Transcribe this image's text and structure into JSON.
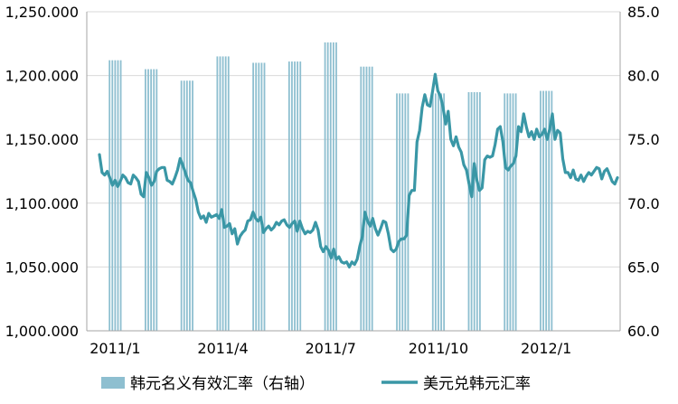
{
  "chart_data": {
    "type": "bar+line",
    "title": "",
    "x_ticks": [
      "2011/1",
      "2011/4",
      "2011/7",
      "2011/10",
      "2012/1"
    ],
    "left_axis": {
      "ylim": [
        1000,
        1250
      ],
      "ticks": [
        "1,000.000",
        "1,050.000",
        "1,100.000",
        "1,150.000",
        "1,200.000",
        "1,250.000"
      ]
    },
    "right_axis": {
      "ylim": [
        60,
        85
      ],
      "ticks": [
        "60.0",
        "65.0",
        "70.0",
        "75.0",
        "80.0",
        "85.0"
      ]
    },
    "grid": "horizontal",
    "legend_position": "bottom",
    "bar_series": {
      "name": "韩元名义有效汇率（右轴）",
      "color": "#8EBFD0",
      "axis": "right",
      "categories": [
        "2011/1",
        "2011/2",
        "2011/3",
        "2011/4",
        "2011/5",
        "2011/6",
        "2011/7",
        "2011/8",
        "2011/9",
        "2011/10",
        "2011/11",
        "2011/12",
        "2012/1",
        "2012/2"
      ],
      "values": [
        81.2,
        80.5,
        79.6,
        81.5,
        81.0,
        81.1,
        82.6,
        80.7,
        78.6,
        78.6,
        78.7,
        78.6,
        78.8,
        null
      ]
    },
    "line_series": {
      "name": "美元兑韩元汇率",
      "color": "#3A97A6",
      "axis": "left",
      "values": [
        1138,
        1124,
        1122,
        1125,
        1120,
        1114,
        1118,
        1113,
        1117,
        1122,
        1120,
        1116,
        1115,
        1122,
        1120,
        1117,
        1107,
        1105,
        1124,
        1120,
        1114,
        1117,
        1125,
        1127,
        1128,
        1128,
        1118,
        1117,
        1115,
        1120,
        1126,
        1135,
        1130,
        1124,
        1118,
        1116,
        1109,
        1103,
        1093,
        1088,
        1090,
        1085,
        1092,
        1089,
        1090,
        1091,
        1088,
        1095,
        1081,
        1082,
        1084,
        1076,
        1080,
        1068,
        1074,
        1077,
        1079,
        1086,
        1087,
        1093,
        1088,
        1086,
        1089,
        1077,
        1080,
        1082,
        1079,
        1081,
        1085,
        1083,
        1086,
        1087,
        1083,
        1081,
        1084,
        1086,
        1078,
        1086,
        1080,
        1076,
        1078,
        1077,
        1079,
        1085,
        1079,
        1066,
        1062,
        1066,
        1063,
        1057,
        1064,
        1056,
        1058,
        1054,
        1053,
        1054,
        1050,
        1054,
        1052,
        1056,
        1066,
        1074,
        1093,
        1086,
        1082,
        1088,
        1080,
        1075,
        1080,
        1086,
        1085,
        1076,
        1064,
        1062,
        1064,
        1070,
        1072,
        1072,
        1075,
        1106,
        1110,
        1110,
        1148,
        1157,
        1175,
        1185,
        1177,
        1176,
        1188,
        1201,
        1188,
        1184,
        1175,
        1162,
        1172,
        1150,
        1145,
        1152,
        1144,
        1140,
        1130,
        1126,
        1115,
        1105,
        1131,
        1118,
        1110,
        1112,
        1134,
        1137,
        1136,
        1137,
        1146,
        1158,
        1160,
        1148,
        1128,
        1126,
        1129,
        1131,
        1137,
        1160,
        1156,
        1170,
        1160,
        1152,
        1156,
        1150,
        1158,
        1152,
        1154,
        1158,
        1150,
        1158,
        1170,
        1150,
        1157,
        1155,
        1135,
        1124,
        1124,
        1120,
        1126,
        1119,
        1118,
        1122,
        1117,
        1121,
        1124,
        1122,
        1125,
        1128,
        1127,
        1119,
        1125,
        1127,
        1122,
        1117,
        1115,
        1120
      ]
    }
  }
}
